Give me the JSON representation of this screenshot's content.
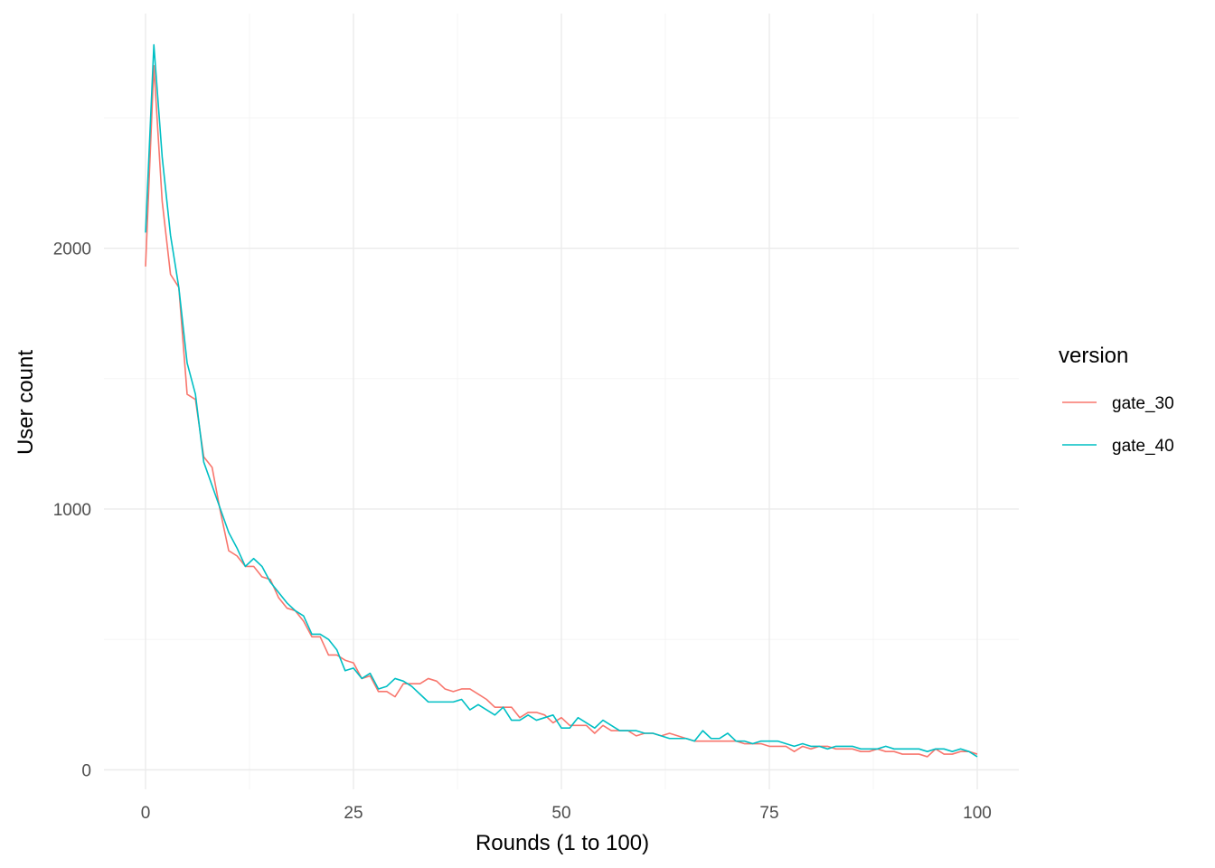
{
  "chart_data": {
    "type": "line",
    "title": "",
    "xlabel": "Rounds (1 to 100)",
    "ylabel": "User count",
    "xlim": [
      -5,
      105
    ],
    "ylim": [
      -75,
      2900
    ],
    "x_ticks": [
      0,
      25,
      50,
      75,
      100
    ],
    "y_ticks": [
      0,
      1000,
      2000
    ],
    "x_minor_ticks": [
      12.5,
      37.5,
      62.5,
      87.5
    ],
    "y_minor_ticks": [
      500,
      1500,
      2500
    ],
    "grid": true,
    "legend": {
      "title": "version",
      "position": "right"
    },
    "x": [
      0,
      1,
      2,
      3,
      4,
      5,
      6,
      7,
      8,
      9,
      10,
      11,
      12,
      13,
      14,
      15,
      16,
      17,
      18,
      19,
      20,
      21,
      22,
      23,
      24,
      25,
      26,
      27,
      28,
      29,
      30,
      31,
      32,
      33,
      34,
      35,
      36,
      37,
      38,
      39,
      40,
      41,
      42,
      43,
      44,
      45,
      46,
      47,
      48,
      49,
      50,
      51,
      52,
      53,
      54,
      55,
      56,
      57,
      58,
      59,
      60,
      61,
      62,
      63,
      64,
      65,
      66,
      67,
      68,
      69,
      70,
      71,
      72,
      73,
      74,
      75,
      76,
      77,
      78,
      79,
      80,
      81,
      82,
      83,
      84,
      85,
      86,
      87,
      88,
      89,
      90,
      91,
      92,
      93,
      94,
      95,
      96,
      97,
      98,
      99,
      100
    ],
    "series": [
      {
        "name": "gate_30",
        "color": "#F8766D",
        "values": [
          1930,
          2700,
          2180,
          1900,
          1850,
          1440,
          1420,
          1200,
          1160,
          990,
          840,
          820,
          780,
          780,
          740,
          730,
          660,
          620,
          610,
          570,
          510,
          510,
          440,
          440,
          420,
          410,
          350,
          360,
          300,
          300,
          280,
          330,
          330,
          330,
          350,
          340,
          310,
          300,
          310,
          310,
          290,
          270,
          240,
          240,
          240,
          200,
          220,
          220,
          210,
          180,
          200,
          170,
          170,
          170,
          140,
          170,
          150,
          150,
          150,
          130,
          140,
          140,
          130,
          140,
          130,
          120,
          110,
          110,
          110,
          110,
          110,
          110,
          100,
          100,
          100,
          90,
          90,
          90,
          70,
          90,
          80,
          90,
          90,
          80,
          80,
          80,
          70,
          70,
          80,
          70,
          70,
          60,
          60,
          60,
          50,
          80,
          60,
          60,
          70,
          70,
          60
        ]
      },
      {
        "name": "gate_40",
        "color": "#00BFC4",
        "values": [
          2060,
          2780,
          2350,
          2050,
          1850,
          1560,
          1440,
          1180,
          1090,
          1000,
          910,
          850,
          780,
          810,
          780,
          720,
          680,
          640,
          610,
          590,
          520,
          520,
          500,
          460,
          380,
          390,
          350,
          370,
          310,
          320,
          350,
          340,
          320,
          290,
          260,
          260,
          260,
          260,
          270,
          230,
          250,
          230,
          210,
          240,
          190,
          190,
          210,
          190,
          200,
          210,
          160,
          160,
          200,
          180,
          160,
          190,
          170,
          150,
          150,
          150,
          140,
          140,
          130,
          120,
          120,
          120,
          110,
          150,
          120,
          120,
          140,
          110,
          110,
          100,
          110,
          110,
          110,
          100,
          90,
          100,
          90,
          90,
          80,
          90,
          90,
          90,
          80,
          80,
          80,
          90,
          80,
          80,
          80,
          80,
          70,
          80,
          80,
          70,
          80,
          70,
          50
        ]
      }
    ]
  }
}
